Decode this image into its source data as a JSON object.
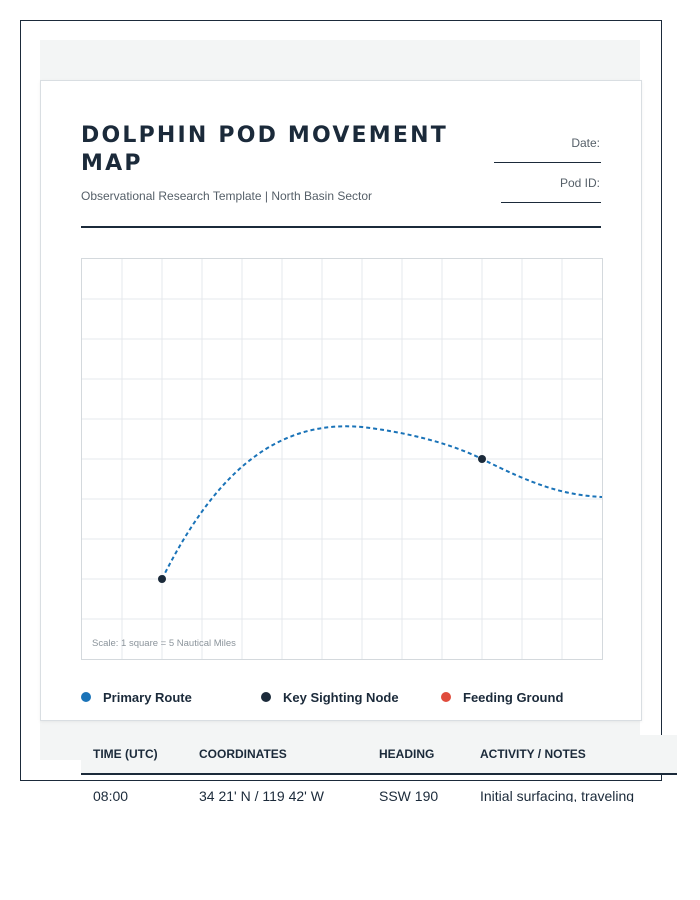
{
  "header": {
    "title": "DOLPHIN POD MOVEMENT MAP",
    "subtitle": "Observational Research Template | North Basin Sector",
    "date_label": "Date:",
    "pod_label": "Pod ID:"
  },
  "map": {
    "scale_note": "Scale: 1 square = 5 Nautical Miles",
    "route_color": "#1a73b8",
    "node_color": "#1b2a3a"
  },
  "legend": [
    {
      "label": "Primary Route",
      "color": "#1a73b8",
      "icon": "route-dot-icon"
    },
    {
      "label": "Key Sighting Node",
      "color": "#1b2a3a",
      "icon": "node-dot-icon"
    },
    {
      "label": "Feeding Ground",
      "color": "#e04b3c",
      "icon": "feeding-dot-icon"
    }
  ],
  "table": {
    "headers": [
      "TIME (UTC)",
      "COORDINATES",
      "HEADING",
      "ACTIVITY / NOTES"
    ],
    "rows": [
      [
        "08:00",
        "34 21' N / 119 42' W",
        "SSW 190",
        "Initial surfacing, traveling"
      ]
    ]
  }
}
